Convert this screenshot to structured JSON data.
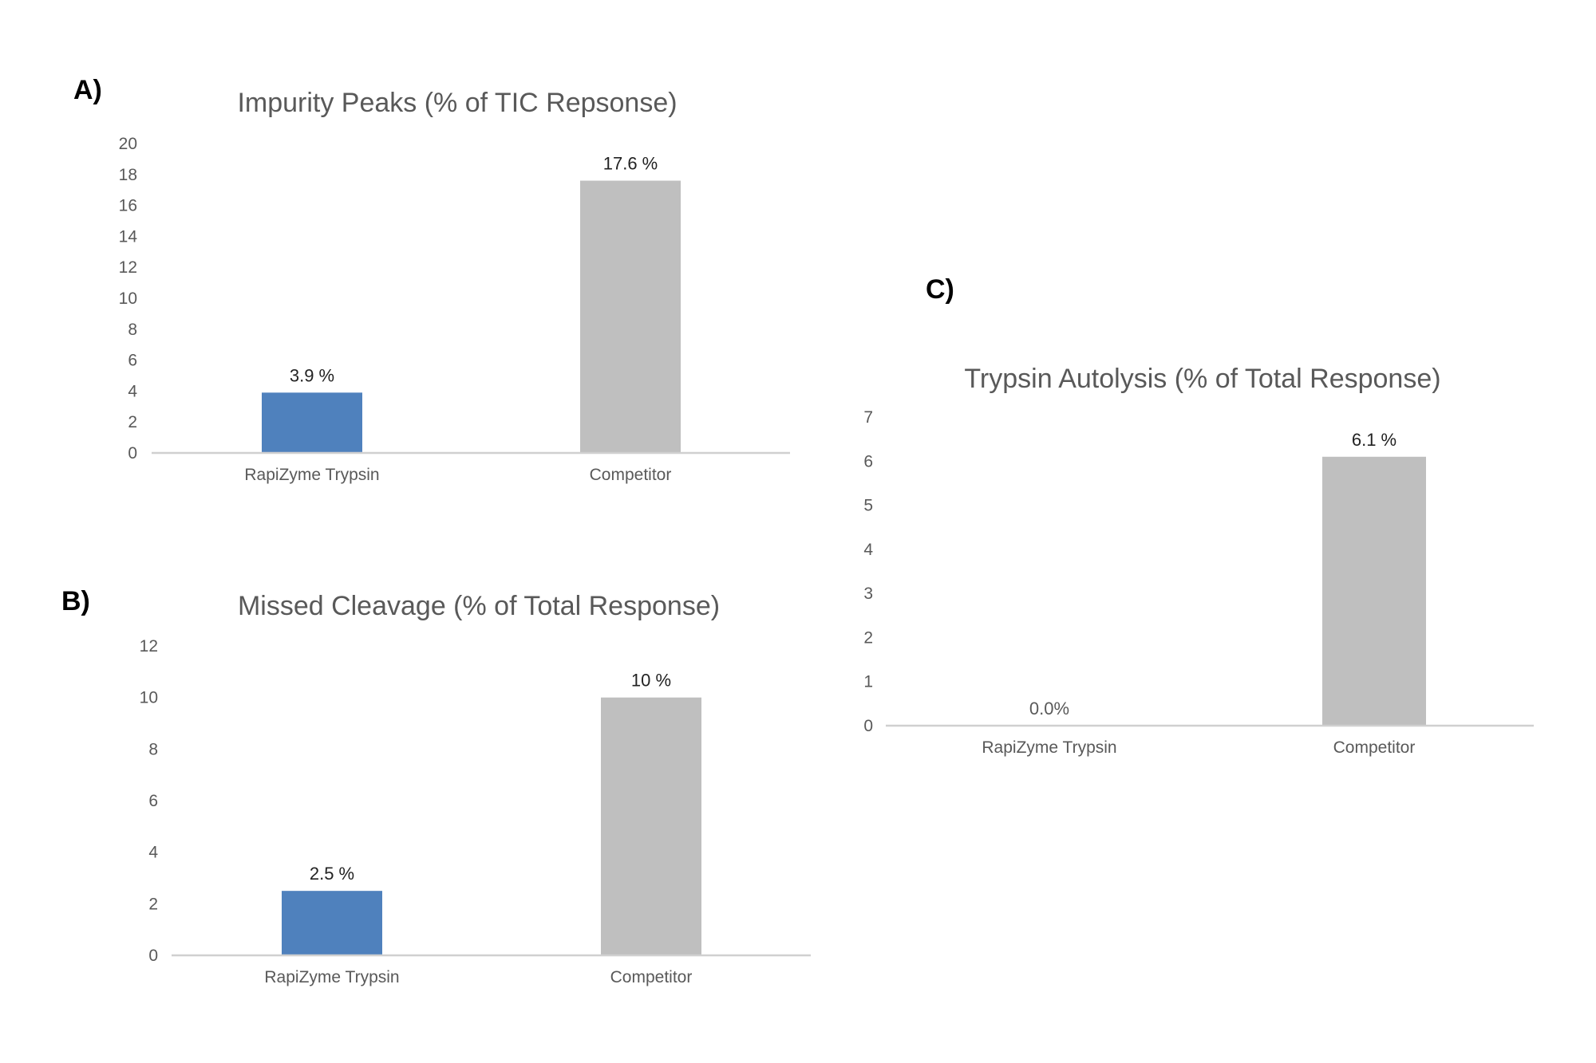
{
  "chart_data": [
    {
      "panel": "A)",
      "type": "bar",
      "title": "Impurity Peaks (% of TIC Repsonse)",
      "categories": [
        "RapiZyme Trypsin",
        "Competitor"
      ],
      "values": [
        3.9,
        17.6
      ],
      "data_labels": [
        "3.9 %",
        "17.6 %"
      ],
      "colors": [
        "#4f81bd",
        "#bfbfbf"
      ],
      "ylim": [
        0,
        20
      ],
      "yticks": [
        "0",
        "2",
        "4",
        "6",
        "8",
        "10",
        "12",
        "14",
        "16",
        "18",
        "20"
      ],
      "grid": false,
      "legend": "none",
      "xlabel": "",
      "ylabel": ""
    },
    {
      "panel": "B)",
      "type": "bar",
      "title": "Missed Cleavage (% of Total Response)",
      "categories": [
        "RapiZyme Trypsin",
        "Competitor"
      ],
      "values": [
        2.5,
        10
      ],
      "data_labels": [
        "2.5 %",
        "10 %"
      ],
      "colors": [
        "#4f81bd",
        "#bfbfbf"
      ],
      "ylim": [
        0,
        12
      ],
      "yticks": [
        "0",
        "2",
        "4",
        "6",
        "8",
        "10",
        "12"
      ],
      "grid": false,
      "legend": "none",
      "xlabel": "",
      "ylabel": ""
    },
    {
      "panel": "C)",
      "type": "bar",
      "title": "Trypsin Autolysis (% of Total Response)",
      "categories": [
        "RapiZyme Trypsin",
        "Competitor"
      ],
      "values": [
        0.0,
        6.1
      ],
      "data_labels": [
        "0.0%",
        "6.1 %"
      ],
      "colors": [
        "#4f81bd",
        "#bfbfbf"
      ],
      "ylim": [
        0,
        7
      ],
      "yticks": [
        "0",
        "1",
        "2",
        "3",
        "4",
        "5",
        "6",
        "7"
      ],
      "grid": false,
      "legend": "none",
      "xlabel": "",
      "ylabel": ""
    }
  ],
  "colors": {
    "text": "#595959",
    "axis": "#d0d0d0",
    "panel_label": "#000000",
    "data_label": "#222222"
  }
}
